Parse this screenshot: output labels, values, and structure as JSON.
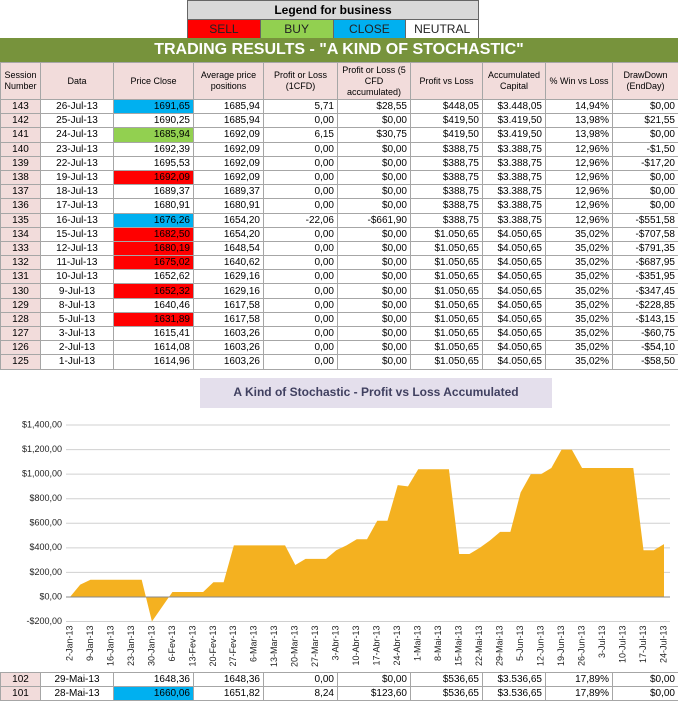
{
  "legend": {
    "title": "Legend for business",
    "items": [
      {
        "label": "SELL",
        "color": "#ff0000"
      },
      {
        "label": "BUY",
        "color": "#92d050"
      },
      {
        "label": "CLOSE",
        "color": "#00b0f0"
      },
      {
        "label": "NEUTRAL",
        "color": "#ffffff"
      }
    ]
  },
  "table": {
    "title": "TRADING RESULTS - \"A KIND OF STOCHASTIC\"",
    "columns": [
      "Session Number",
      "Data",
      "Price Close",
      "Average price positions",
      "Profit or Loss (1CFD)",
      "Profit or Loss (5 CFD accumulated)",
      "Profit vs Loss",
      "Accumulated Capital",
      "% Win vs Loss",
      "DrawDown (EndDay)"
    ],
    "rows": [
      {
        "cells": [
          "143",
          "26-Jul-13",
          "1691,65",
          "1685,94",
          "5,71",
          "$28,55",
          "$448,05",
          "$3.448,05",
          "14,94%",
          "$0,00"
        ],
        "highlight": "#00b0f0"
      },
      {
        "cells": [
          "142",
          "25-Jul-13",
          "1690,25",
          "1685,94",
          "0,00",
          "$0,00",
          "$419,50",
          "$3.419,50",
          "13,98%",
          "$21,55"
        ]
      },
      {
        "cells": [
          "141",
          "24-Jul-13",
          "1685,94",
          "1692,09",
          "6,15",
          "$30,75",
          "$419,50",
          "$3.419,50",
          "13,98%",
          "$0,00"
        ],
        "highlight": "#92d050"
      },
      {
        "cells": [
          "140",
          "23-Jul-13",
          "1692,39",
          "1692,09",
          "0,00",
          "$0,00",
          "$388,75",
          "$3.388,75",
          "12,96%",
          "-$1,50"
        ]
      },
      {
        "cells": [
          "139",
          "22-Jul-13",
          "1695,53",
          "1692,09",
          "0,00",
          "$0,00",
          "$388,75",
          "$3.388,75",
          "12,96%",
          "-$17,20"
        ]
      },
      {
        "cells": [
          "138",
          "19-Jul-13",
          "1692,09",
          "1692,09",
          "0,00",
          "$0,00",
          "$388,75",
          "$3.388,75",
          "12,96%",
          "$0,00"
        ],
        "highlight": "#ff0000"
      },
      {
        "cells": [
          "137",
          "18-Jul-13",
          "1689,37",
          "1689,37",
          "0,00",
          "$0,00",
          "$388,75",
          "$3.388,75",
          "12,96%",
          "$0,00"
        ]
      },
      {
        "cells": [
          "136",
          "17-Jul-13",
          "1680,91",
          "1680,91",
          "0,00",
          "$0,00",
          "$388,75",
          "$3.388,75",
          "12,96%",
          "$0,00"
        ]
      },
      {
        "cells": [
          "135",
          "16-Jul-13",
          "1676,26",
          "1654,20",
          "-22,06",
          "-$661,90",
          "$388,75",
          "$3.388,75",
          "12,96%",
          "-$551,58"
        ],
        "highlight": "#00b0f0"
      },
      {
        "cells": [
          "134",
          "15-Jul-13",
          "1682,50",
          "1654,20",
          "0,00",
          "$0,00",
          "$1.050,65",
          "$4.050,65",
          "35,02%",
          "-$707,58"
        ],
        "highlight": "#ff0000"
      },
      {
        "cells": [
          "133",
          "12-Jul-13",
          "1680,19",
          "1648,54",
          "0,00",
          "$0,00",
          "$1.050,65",
          "$4.050,65",
          "35,02%",
          "-$791,35"
        ],
        "highlight": "#ff0000"
      },
      {
        "cells": [
          "132",
          "11-Jul-13",
          "1675,02",
          "1640,62",
          "0,00",
          "$0,00",
          "$1.050,65",
          "$4.050,65",
          "35,02%",
          "-$687,95"
        ],
        "highlight": "#ff0000"
      },
      {
        "cells": [
          "131",
          "10-Jul-13",
          "1652,62",
          "1629,16",
          "0,00",
          "$0,00",
          "$1.050,65",
          "$4.050,65",
          "35,02%",
          "-$351,95"
        ]
      },
      {
        "cells": [
          "130",
          "9-Jul-13",
          "1652,32",
          "1629,16",
          "0,00",
          "$0,00",
          "$1.050,65",
          "$4.050,65",
          "35,02%",
          "-$347,45"
        ],
        "highlight": "#ff0000"
      },
      {
        "cells": [
          "129",
          "8-Jul-13",
          "1640,46",
          "1617,58",
          "0,00",
          "$0,00",
          "$1.050,65",
          "$4.050,65",
          "35,02%",
          "-$228,85"
        ]
      },
      {
        "cells": [
          "128",
          "5-Jul-13",
          "1631,89",
          "1617,58",
          "0,00",
          "$0,00",
          "$1.050,65",
          "$4.050,65",
          "35,02%",
          "-$143,15"
        ],
        "highlight": "#ff0000"
      },
      {
        "cells": [
          "127",
          "3-Jul-13",
          "1615,41",
          "1603,26",
          "0,00",
          "$0,00",
          "$1.050,65",
          "$4.050,65",
          "35,02%",
          "-$60,75"
        ]
      },
      {
        "cells": [
          "126",
          "2-Jul-13",
          "1614,08",
          "1603,26",
          "0,00",
          "$0,00",
          "$1.050,65",
          "$4.050,65",
          "35,02%",
          "-$54,10"
        ]
      },
      {
        "cells": [
          "125",
          "1-Jul-13",
          "1614,96",
          "1603,26",
          "0,00",
          "$0,00",
          "$1.050,65",
          "$4.050,65",
          "35,02%",
          "-$58,50"
        ]
      }
    ],
    "rows_after": [
      {
        "cells": [
          "102",
          "29-Mai-13",
          "1648,36",
          "1648,36",
          "0,00",
          "$0,00",
          "$536,65",
          "$3.536,65",
          "17,89%",
          "$0,00"
        ]
      },
      {
        "cells": [
          "101",
          "28-Mai-13",
          "1660,06",
          "1651,82",
          "8,24",
          "$123,60",
          "$536,65",
          "$3.536,65",
          "17,89%",
          "$0,00"
        ],
        "highlight": "#00b0f0"
      }
    ]
  },
  "chart_data": {
    "type": "area",
    "title": "A Kind of Stochastic - Profit vs Loss Accumulated",
    "categories": [
      "2-Jan-13",
      null,
      "9-Jan-13",
      null,
      "16-Jan-13",
      null,
      "23-Jan-13",
      null,
      "30-Jan-13",
      null,
      "6-Fev-13",
      null,
      "13-Fev-13",
      null,
      "20-Fev-13",
      null,
      "27-Fev-13",
      null,
      "6-Mar-13",
      null,
      "13-Mar-13",
      null,
      "20-Mar-13",
      null,
      "27-Mar-13",
      null,
      "3-Abr-13",
      null,
      "10-Abr-13",
      null,
      "17-Abr-13",
      null,
      "24-Abr-13",
      null,
      "1-Mai-13",
      null,
      "8-Mai-13",
      null,
      "15-Mai-13",
      null,
      "22-Mai-13",
      null,
      "29-Mai-13",
      null,
      "5-Jun-13",
      null,
      "12-Jun-13",
      null,
      "19-Jun-13",
      null,
      "26-Jun-13",
      null,
      "3-Jul-13",
      null,
      "10-Jul-13",
      null,
      "17-Jul-13",
      null,
      "24-Jul-13"
    ],
    "values": [
      0,
      100,
      140,
      140,
      140,
      140,
      140,
      140,
      -200,
      -80,
      40,
      40,
      40,
      40,
      120,
      120,
      420,
      420,
      420,
      420,
      420,
      420,
      260,
      310,
      310,
      310,
      380,
      420,
      470,
      470,
      620,
      620,
      910,
      900,
      1040,
      1040,
      1040,
      1040,
      350,
      350,
      400,
      460,
      530,
      530,
      850,
      1000,
      1000,
      1050,
      1200,
      1200,
      1050,
      1050,
      1050,
      1050,
      1050,
      1050,
      380,
      380,
      430
    ],
    "color": "#f4b120",
    "ylim": [
      -200,
      1400
    ],
    "yticks": [
      {
        "value": -200,
        "label": "-$200,00"
      },
      {
        "value": 0,
        "label": "$0,00"
      },
      {
        "value": 200,
        "label": "$200,00"
      },
      {
        "value": 400,
        "label": "$400,00"
      },
      {
        "value": 600,
        "label": "$600,00"
      },
      {
        "value": 800,
        "label": "$800,00"
      },
      {
        "value": 1000,
        "label": "$1,000,00"
      },
      {
        "value": 1200,
        "label": "$1,200,00"
      },
      {
        "value": 1400,
        "label": "$1,400,00"
      }
    ],
    "grid": true
  }
}
